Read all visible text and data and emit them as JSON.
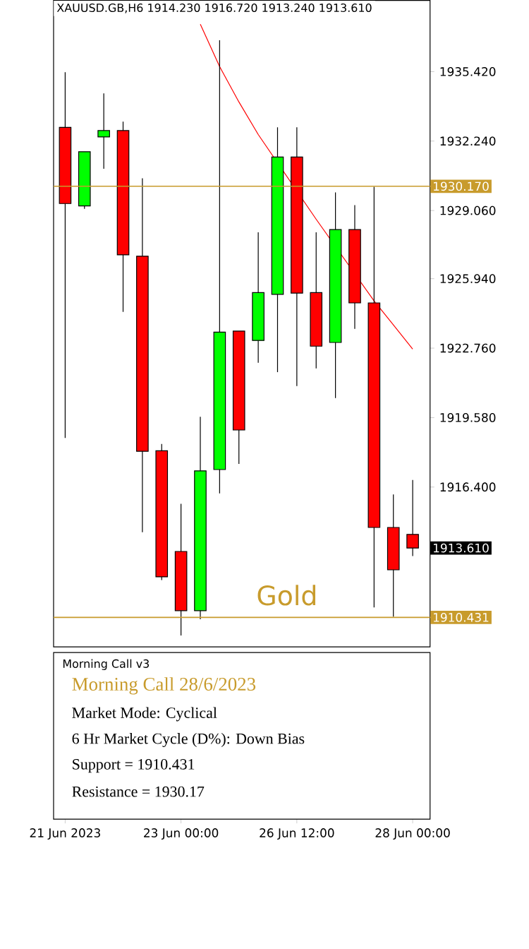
{
  "chart_data": [
    {
      "type": "candlestick",
      "title": "XAUUSD.GB,H6 1914.230 1916.720 1913.240 1913.610",
      "categories": [
        null,
        null,
        null,
        null,
        null,
        null,
        null,
        null,
        null,
        null,
        null,
        null,
        null,
        null,
        null,
        null,
        null,
        null,
        null
      ],
      "ohlc": [
        [
          1932.87,
          1935.39,
          1918.65,
          1929.38
        ],
        [
          1929.27,
          1931.75,
          1929.14,
          1931.75
        ],
        [
          1932.43,
          1934.42,
          1930.97,
          1932.72
        ],
        [
          1932.72,
          1933.13,
          1924.42,
          1927.03
        ],
        [
          1926.97,
          1930.54,
          1914.33,
          1918.04
        ],
        [
          1918.06,
          1918.37,
          1912.14,
          1912.29
        ],
        [
          1913.45,
          1915.63,
          1909.6,
          1910.74
        ],
        [
          1910.74,
          1919.62,
          1910.35,
          1917.14
        ],
        [
          1917.2,
          1936.86,
          1916.11,
          1923.49
        ],
        [
          1923.54,
          1923.54,
          1917.46,
          1919.01
        ],
        [
          1923.11,
          1928.06,
          1922.09,
          1925.3
        ],
        [
          1925.22,
          1932.87,
          1921.66,
          1931.51
        ],
        [
          1931.51,
          1932.87,
          1921.02,
          1925.28
        ],
        [
          1925.3,
          1928.06,
          1921.83,
          1922.85
        ],
        [
          1923.02,
          1929.89,
          1920.47,
          1928.19
        ],
        [
          1928.19,
          1929.31,
          1923.64,
          1924.83
        ],
        [
          1924.83,
          1930.15,
          1910.89,
          1914.55
        ],
        [
          1914.55,
          1916.06,
          1910.46,
          1912.61
        ],
        [
          1914.23,
          1916.72,
          1913.24,
          1913.61
        ]
      ],
      "colors": [
        "#ff0000",
        "#00ff00",
        "#00ff00",
        "#ff0000",
        "#ff0000",
        "#ff0000",
        "#ff0000",
        "#00ff00",
        "#00ff00",
        "#ff0000",
        "#00ff00",
        "#00ff00",
        "#ff0000",
        "#ff0000",
        "#00ff00",
        "#ff0000",
        "#ff0000",
        "#ff0000",
        "#ff0000"
      ],
      "series": [
        {
          "type": "line",
          "color": "#ff0000",
          "values": [
            null,
            null,
            null,
            null,
            null,
            null,
            null,
            1937.59,
            1935.65,
            1934.03,
            1932.54,
            null,
            null,
            1928.66,
            null,
            null,
            1924.92,
            1923.82,
            1922.72
          ]
        }
      ],
      "ylim": [
        1909.08,
        1938.68
      ],
      "yticks": [
        {
          "value": 1916.4,
          "label": "1916.400"
        },
        {
          "value": 1919.58,
          "label": "1919.580"
        },
        {
          "value": 1922.76,
          "label": "1922.760"
        },
        {
          "value": 1925.94,
          "label": "1925.940"
        },
        {
          "value": 1929.06,
          "label": "1929.060"
        },
        {
          "value": 1932.24,
          "label": "1932.240"
        },
        {
          "value": 1935.42,
          "label": "1935.420"
        }
      ],
      "ref_lines": [
        {
          "axis": "y",
          "value": 1930.17,
          "label": "1930.170",
          "color": "#c89b2c"
        },
        {
          "axis": "y",
          "value": 1910.431,
          "label": "1910.431",
          "color": "#c89b2c"
        }
      ],
      "annotations": [
        "Gold",
        "1913.610"
      ],
      "tick_labels": "y"
    },
    {
      "type": "other",
      "title": "Morning Call v3",
      "categories": [
        "21 Jun 2023",
        null,
        null,
        null,
        null,
        null,
        "23 Jun 00:00",
        null,
        null,
        null,
        null,
        null,
        "26 Jun 12:00",
        null,
        null,
        null,
        null,
        null,
        "28 Jun 00:00"
      ],
      "annotations": [
        "Morning Call 28/6/2023",
        "Market Mode: Cyclical",
        "6 Hr Market Cycle (D%): Down Bias",
        "Support = 1910.431",
        "Resistance = 1930.17"
      ]
    }
  ]
}
